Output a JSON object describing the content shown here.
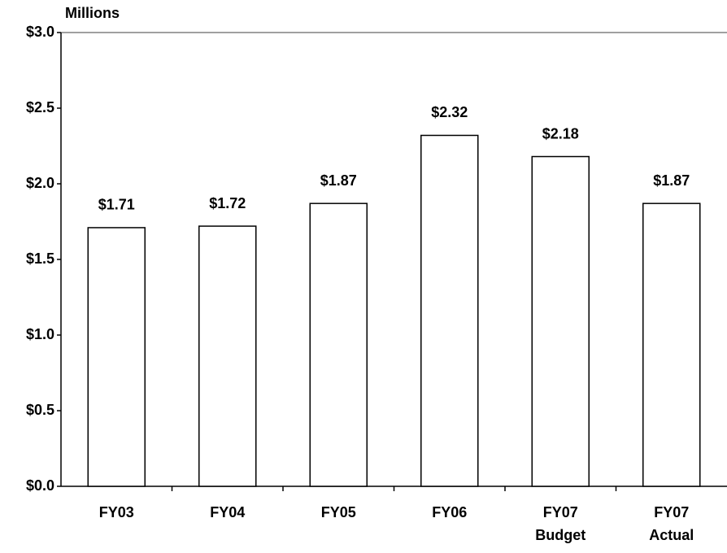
{
  "chart_data": {
    "type": "bar",
    "unit_label": "Millions",
    "categories": [
      "FY03",
      "FY04",
      "FY05",
      "FY06",
      "FY07 Budget",
      "FY07 Actual"
    ],
    "values": [
      1.71,
      1.72,
      1.87,
      2.32,
      2.18,
      1.87
    ],
    "value_labels": [
      "$1.71",
      "$1.72",
      "$1.87",
      "$2.32",
      "$2.18",
      "$1.87"
    ],
    "color": "#ffffff",
    "ylim": [
      0,
      3
    ],
    "yticks": [
      {
        "value": 0,
        "label": "$0.0"
      },
      {
        "value": 0.5,
        "label": "$0.5"
      },
      {
        "value": 1,
        "label": "$1.0"
      },
      {
        "value": 1.5,
        "label": "$1.5"
      },
      {
        "value": 2,
        "label": "$2.0"
      },
      {
        "value": 2.5,
        "label": "$2.5"
      },
      {
        "value": 3,
        "label": "$3.0"
      }
    ],
    "grid": false
  }
}
